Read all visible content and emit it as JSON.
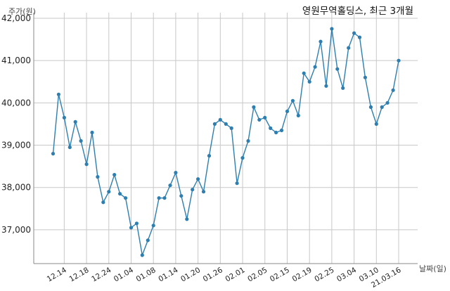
{
  "chart_data": {
    "type": "line",
    "title": "영원무역홀딩스, 최근 3개월",
    "xlabel": "날짜(일)",
    "ylabel": "주가(원)",
    "ylim": [
      36200,
      42000
    ],
    "yticks": [
      37000,
      38000,
      39000,
      40000,
      41000,
      42000
    ],
    "ytick_labels": [
      "37,000",
      "38,000",
      "39,000",
      "40,000",
      "41,000",
      "42,000"
    ],
    "xtick_labels": [
      "12.14",
      "12.18",
      "12.24",
      "01.04",
      "01.08",
      "01.14",
      "01.20",
      "01.26",
      "02.01",
      "02.05",
      "02.15",
      "02.19",
      "02.25",
      "03.04",
      "03.10",
      "21.03.16"
    ],
    "xtick_positions": [
      2,
      6,
      10,
      14,
      18,
      22,
      26,
      30,
      34,
      38,
      42,
      46,
      50,
      54,
      58,
      62
    ],
    "grid": true,
    "color": "#2e7fb0",
    "series": [
      {
        "values": [
          38800,
          40200,
          39650,
          38950,
          39550,
          39100,
          38550,
          39300,
          38250,
          37650,
          37900,
          38300,
          37850,
          37750,
          37050,
          37150,
          36400,
          36750,
          37100,
          37750,
          37750,
          38050,
          38350,
          37800,
          37250,
          37950,
          38200,
          37900,
          38750,
          39500,
          39600,
          39500,
          39400,
          38100,
          38700,
          39100,
          39900,
          39600,
          39650,
          39400,
          39300,
          39350,
          39800,
          40050,
          39700,
          40700,
          40500,
          40850,
          41450,
          40400,
          41750,
          40800,
          40350,
          41300,
          41650,
          41550,
          40600,
          39900,
          39500,
          39900,
          40000,
          40300,
          41000
        ]
      }
    ]
  }
}
